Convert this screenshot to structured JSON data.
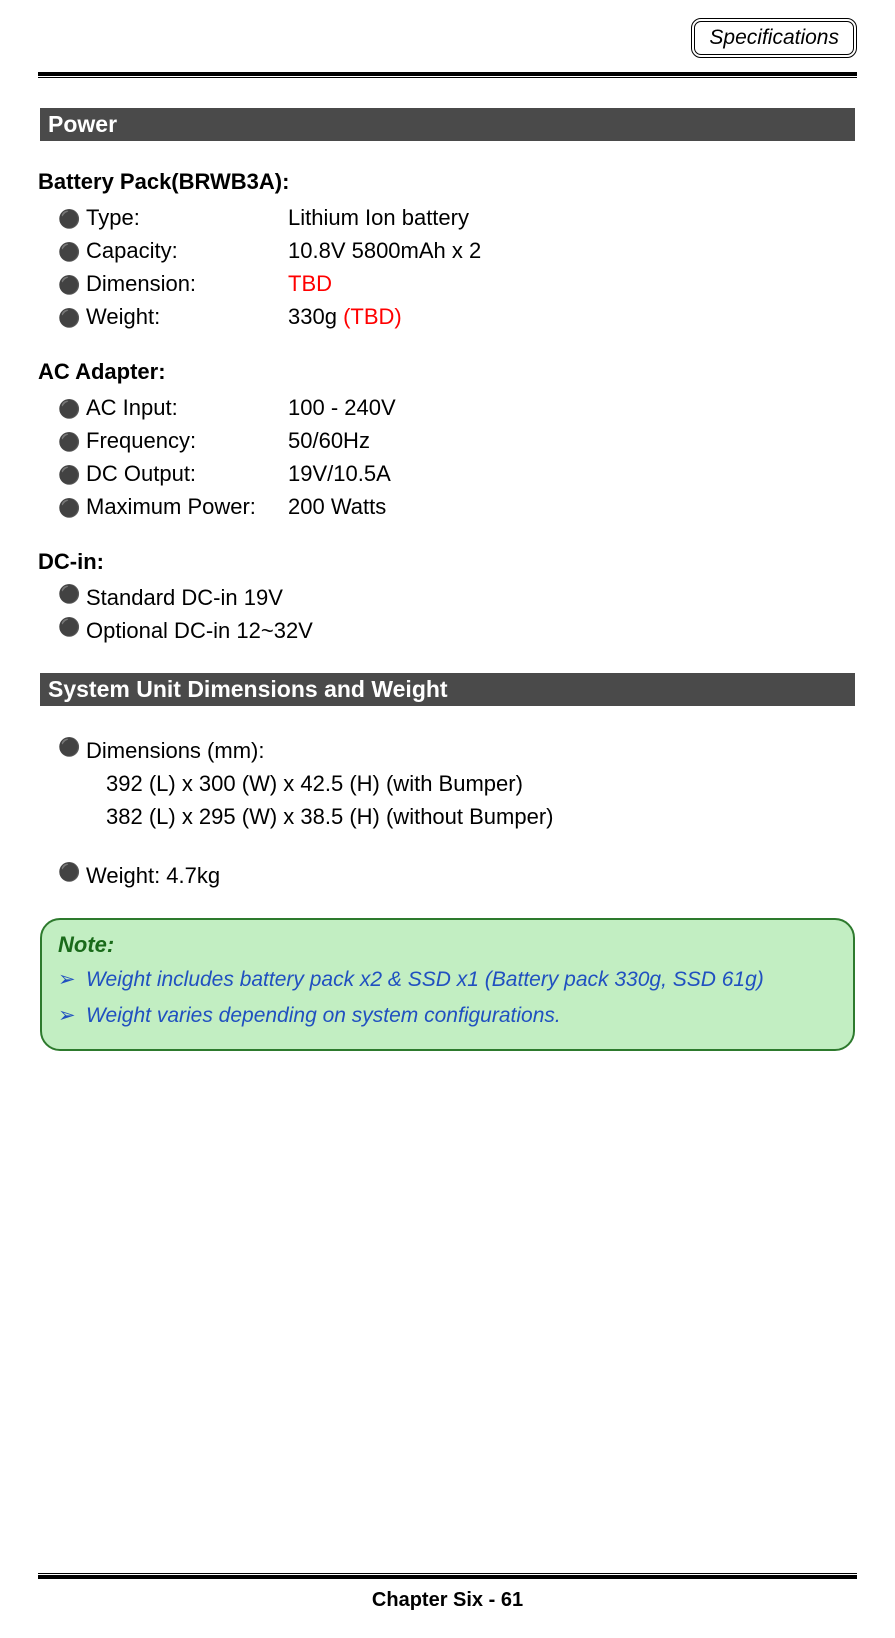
{
  "header": {
    "label": "Specifications"
  },
  "sections": {
    "power": {
      "title": "Power",
      "battery": {
        "title": "Battery Pack(BRWB3A):",
        "items": [
          {
            "label": "Type:",
            "value": "Lithium Ion battery"
          },
          {
            "label": "Capacity:",
            "value": "10.8V 5800mAh x 2"
          },
          {
            "label": "Dimension:",
            "value_red": "TBD"
          },
          {
            "label": "Weight:",
            "value": "330g ",
            "value_red": "(TBD)"
          }
        ]
      },
      "adapter": {
        "title": "AC Adapter:",
        "items": [
          {
            "label": "AC Input:",
            "value": "100 - 240V"
          },
          {
            "label": "Frequency:",
            "value": "50/60Hz"
          },
          {
            "label": "DC Output:",
            "value": "19V/10.5A"
          },
          {
            "label": "Maximum Power:",
            "value": "200 Watts"
          }
        ]
      },
      "dcin": {
        "title": "DC-in:",
        "items": [
          {
            "text": "Standard DC-in 19V"
          },
          {
            "text": "Optional DC-in 12~32V"
          }
        ]
      }
    },
    "dimensions": {
      "title": "System Unit Dimensions and Weight",
      "dim_label": "Dimensions (mm):",
      "dim_lines": [
        "392 (L) x 300 (W) x 42.5 (H) (with Bumper)",
        "382 (L) x 295 (W) x 38.5 (H) (without Bumper)"
      ],
      "weight": "Weight:  4.7kg"
    }
  },
  "note": {
    "title": "Note:",
    "items": [
      "Weight includes battery pack x2 & SSD x1 (Battery pack 330g, SSD 61g)",
      "Weight varies depending on system configurations."
    ]
  },
  "footer": {
    "text": "Chapter Six - 61"
  },
  "colors": {
    "section_bg": "#4a4a4a",
    "section_fg": "#ffffff",
    "red": "#ff0000",
    "note_bg": "#c2eec2",
    "note_border": "#2d7a2d",
    "note_title": "#1a6b1a",
    "note_text": "#2050c0"
  }
}
